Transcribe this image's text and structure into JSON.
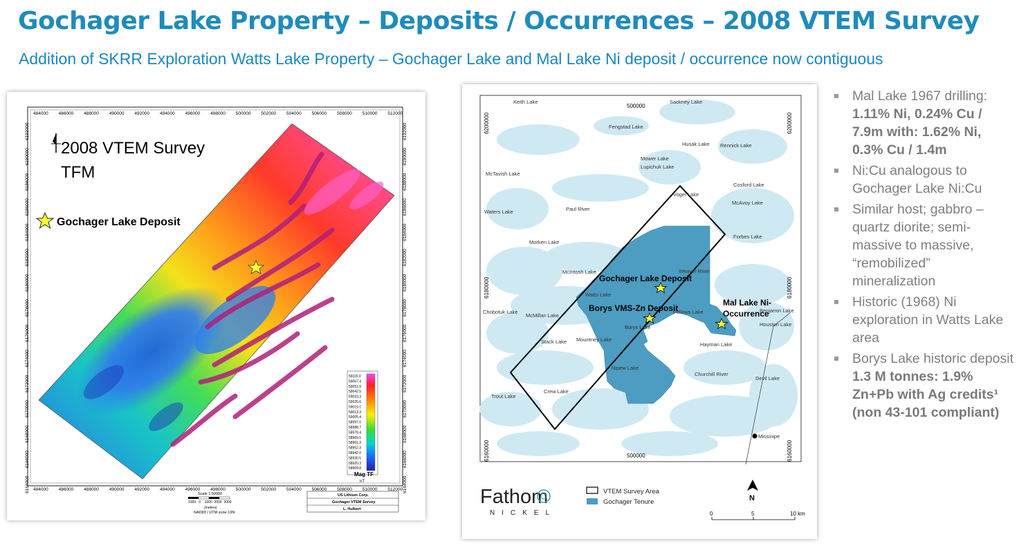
{
  "header": {
    "title": "Gochager Lake Property – Deposits / Occurrences – 2008 VTEM Survey",
    "subtitle": "Addition of SKRR Exploration Watts Lake Property – Gochager Lake and Mal Lake Ni deposit / occurrence now contiguous"
  },
  "map1": {
    "survey_title": "2008 VTEM Survey",
    "survey_sub": "TFM",
    "deposit_label": "Gochager Lake Deposit",
    "x_ticks": [
      "484000",
      "486000",
      "488000",
      "490000",
      "492000",
      "494000",
      "496000",
      "498000",
      "500000",
      "502000",
      "504000",
      "506000",
      "508000",
      "510000",
      "512000"
    ],
    "x_ticks_bottom": [
      "484000",
      "486000",
      "488000",
      "490000",
      "492000",
      "494000",
      "496000",
      "498000",
      "500000",
      "502000",
      "504000",
      "506000",
      "508000",
      "510000",
      "512000"
    ],
    "y_ticks": [
      "6192000",
      "6190000",
      "6188000",
      "6186000",
      "6184000",
      "6182000",
      "6180000",
      "6178000",
      "6176000",
      "6174000",
      "6172000",
      "6170000",
      "6168000",
      "6166000",
      "6164000"
    ],
    "legend_values": [
      "59115.0",
      "59067.4",
      "59051.9",
      "59042.5",
      "59033.3",
      "59025.6",
      "59019.1",
      "59013.3",
      "59005.4",
      "58997.0",
      "58988.7",
      "58978.4",
      "58969.5",
      "58961.3",
      "58952.3",
      "58942.0",
      "58930.5",
      "58920.3",
      "58909.8"
    ],
    "legend_title": "Mag TF",
    "legend_unit": "nT",
    "scale_label": "Scale 1:50000",
    "scale_ticks": "1000   0    1000  2000  3000",
    "scale_unit": "(meters)",
    "projection": "NAD83 / UTM zone 13N",
    "info_company": "US Lithium Corp.",
    "info_survey": "Gochager VTEM Survey",
    "info_author": "L. Hulbert"
  },
  "map2": {
    "lakes": {
      "keith": "Keith Lake",
      "sackney": "Sackney Lake",
      "fengstad": "Fengstad Lake",
      "husak": "Husak Lake",
      "rennick": "Rennick Lake",
      "mower": "Mower Lake",
      "lupichuk": "Lupichuk Lake",
      "mctavish": "McTavish Lake",
      "vogel": "Vogel Lake",
      "cosford": "Cosford Lake",
      "mcavoy": "McAvoy Lake",
      "waters": "Waters Lake",
      "paul": "Paul River",
      "forbes": "Forbes Lake",
      "morken": "Morken Lake",
      "weaver": "Weaver River",
      "mcintosh": "McIntosh Lake",
      "watts": "Watts Lake",
      "chobotuk": "Chobotuk Lake",
      "mcmillan": "McMillan Lake",
      "fellows": "Fellows Lake",
      "benjamin": "Benjamin Lake",
      "houston": "Houston Lake",
      "borys": "Borys Lake",
      "mountney": "Mountney Lake",
      "hayman": "Hayman Lake",
      "stack": "Stack Lake",
      "nipew": "Nipew Lake",
      "churchill": "Churchill River",
      "devil": "Devil Lake",
      "crew": "Crew Lake",
      "trout": "Trout Lake",
      "missinipe": "Missinipe"
    },
    "gochager_deposit": "Gochager Lake Deposit",
    "borys_deposit": "Borys VMS-Zn Deposit",
    "mal_lake_1": "Mal Lake Ni-",
    "mal_lake_2": "Occurrence",
    "coord_top": "500000",
    "coord_bottom": "500000",
    "coord_left_1": "6200000",
    "coord_left_2": "6180000",
    "coord_left_3": "6160000",
    "coord_right_1": "6200000",
    "coord_right_2": "6180000",
    "coord_right_3": "6160000",
    "logo_main": "Fathom",
    "logo_sub": "NICKEL",
    "legend_survey": "VTEM Survey Area",
    "legend_tenure": "Gochager Tenure",
    "north": "N",
    "scale_0": "0",
    "scale_5": "5",
    "scale_10": "10 km"
  },
  "bullets": [
    {
      "plain": "Mal Lake 1967 drilling: ",
      "bold": "1.11% Ni, 0.24% Cu / 7.9m with: 1.62% Ni, 0.3% Cu / 1.4m",
      "tail": ""
    },
    {
      "plain": "Ni:Cu analogous to Gochager Lake Ni:Cu",
      "bold": "",
      "tail": ""
    },
    {
      "plain": "Similar host; gabbro – quartz diorite; semi-massive to massive, “remobilized” mineralization",
      "bold": "",
      "tail": ""
    },
    {
      "plain": "Historic (1968) Ni exploration in Watts Lake area",
      "bold": "",
      "tail": ""
    },
    {
      "plain": "Borys Lake historic deposit ",
      "bold": "1.3 M tonnes: 1.9% Zn+Pb with Ag credits¹ (non 43-101 compliant)",
      "tail": ""
    }
  ],
  "colors": {
    "title": "#1f8bbd",
    "bullet_text": "#7f7f7f",
    "tenure": "#4d9cc1",
    "water": "#cfe9f3"
  }
}
